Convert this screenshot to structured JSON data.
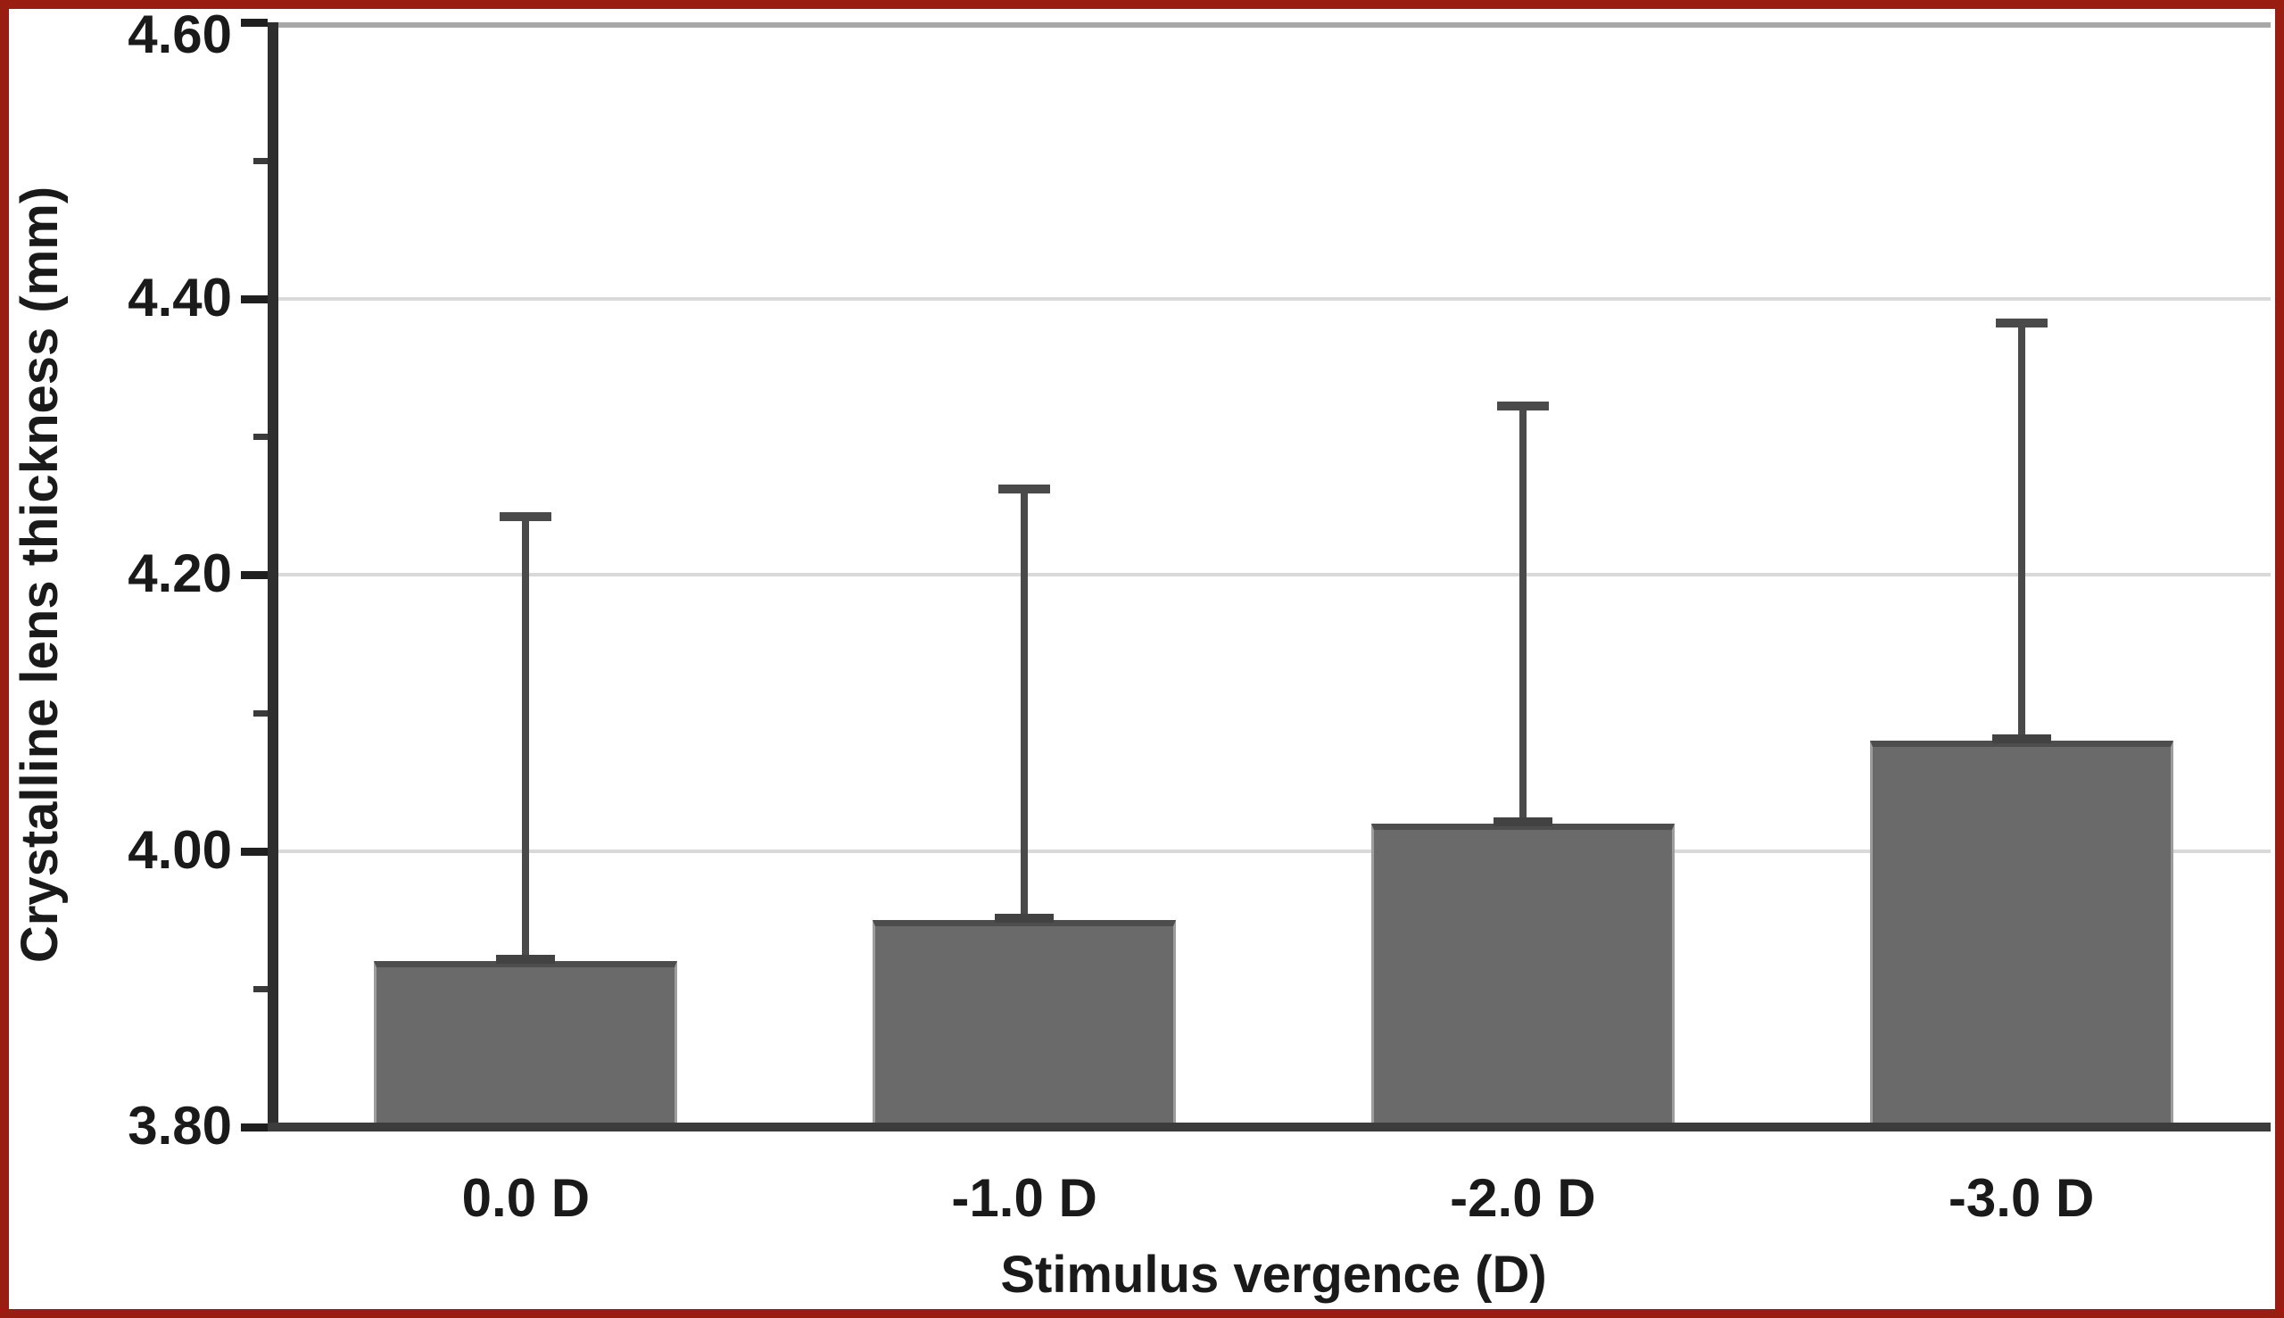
{
  "figure": {
    "border_color": "#9a1d12",
    "background": "#ffffff"
  },
  "chart_data": {
    "type": "bar",
    "title": "",
    "xlabel": "Stimulus vergence (D)",
    "ylabel": "Crystalline lens thickness (mm)",
    "categories": [
      "0.0 D",
      "-1.0 D",
      "-2.0 D",
      "-3.0 D"
    ],
    "values": [
      3.92,
      3.95,
      4.02,
      4.08
    ],
    "error_upper": [
      0.32,
      0.31,
      0.3,
      0.3
    ],
    "ylim": [
      3.8,
      4.6
    ],
    "yticks_major": [
      3.8,
      4.0,
      4.2,
      4.4,
      4.6
    ],
    "ytick_labels": [
      "3.80",
      "4.00",
      "4.20",
      "4.40",
      "4.60"
    ],
    "yticks_minor": [
      3.9,
      4.1,
      4.3,
      4.5
    ],
    "grid": "horizontal-major",
    "legend": "none",
    "bar_width_fraction": 0.6,
    "colors": {
      "bar_fill": "#6a6a6a",
      "bar_edge_top": "#4d4d4d",
      "bar_edge_side": "#9d9d9d",
      "error_bar": "#4a4a4a",
      "error_cap_bottom": "#424242",
      "gridline": "#d9d9d9",
      "axis": "#2e2e2e",
      "baseline": "#3c3c3c",
      "plot_top_frame": "#a8a8a8",
      "text": "#1a1a1a"
    }
  }
}
